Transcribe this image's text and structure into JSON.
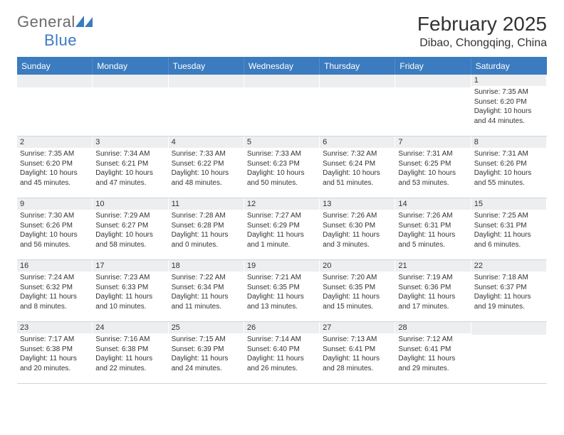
{
  "logo": {
    "text_gray": "General",
    "text_blue": "Blue"
  },
  "title": "February 2025",
  "location": "Dibao, Chongqing, China",
  "colors": {
    "header_bg": "#3b7bbf",
    "header_text": "#ffffff",
    "daynum_bg": "#eceef0",
    "border": "#cfd6dd",
    "body_text": "#333333"
  },
  "typography": {
    "title_fontsize": 28,
    "location_fontsize": 16,
    "weekday_fontsize": 12,
    "body_fontsize": 10
  },
  "weekdays": [
    "Sunday",
    "Monday",
    "Tuesday",
    "Wednesday",
    "Thursday",
    "Friday",
    "Saturday"
  ],
  "weeks": [
    [
      {
        "day": "",
        "lines": [
          "",
          "",
          "",
          ""
        ]
      },
      {
        "day": "",
        "lines": [
          "",
          "",
          "",
          ""
        ]
      },
      {
        "day": "",
        "lines": [
          "",
          "",
          "",
          ""
        ]
      },
      {
        "day": "",
        "lines": [
          "",
          "",
          "",
          ""
        ]
      },
      {
        "day": "",
        "lines": [
          "",
          "",
          "",
          ""
        ]
      },
      {
        "day": "",
        "lines": [
          "",
          "",
          "",
          ""
        ]
      },
      {
        "day": "1",
        "lines": [
          "Sunrise: 7:35 AM",
          "Sunset: 6:20 PM",
          "Daylight: 10 hours",
          "and 44 minutes."
        ]
      }
    ],
    [
      {
        "day": "2",
        "lines": [
          "Sunrise: 7:35 AM",
          "Sunset: 6:20 PM",
          "Daylight: 10 hours",
          "and 45 minutes."
        ]
      },
      {
        "day": "3",
        "lines": [
          "Sunrise: 7:34 AM",
          "Sunset: 6:21 PM",
          "Daylight: 10 hours",
          "and 47 minutes."
        ]
      },
      {
        "day": "4",
        "lines": [
          "Sunrise: 7:33 AM",
          "Sunset: 6:22 PM",
          "Daylight: 10 hours",
          "and 48 minutes."
        ]
      },
      {
        "day": "5",
        "lines": [
          "Sunrise: 7:33 AM",
          "Sunset: 6:23 PM",
          "Daylight: 10 hours",
          "and 50 minutes."
        ]
      },
      {
        "day": "6",
        "lines": [
          "Sunrise: 7:32 AM",
          "Sunset: 6:24 PM",
          "Daylight: 10 hours",
          "and 51 minutes."
        ]
      },
      {
        "day": "7",
        "lines": [
          "Sunrise: 7:31 AM",
          "Sunset: 6:25 PM",
          "Daylight: 10 hours",
          "and 53 minutes."
        ]
      },
      {
        "day": "8",
        "lines": [
          "Sunrise: 7:31 AM",
          "Sunset: 6:26 PM",
          "Daylight: 10 hours",
          "and 55 minutes."
        ]
      }
    ],
    [
      {
        "day": "9",
        "lines": [
          "Sunrise: 7:30 AM",
          "Sunset: 6:26 PM",
          "Daylight: 10 hours",
          "and 56 minutes."
        ]
      },
      {
        "day": "10",
        "lines": [
          "Sunrise: 7:29 AM",
          "Sunset: 6:27 PM",
          "Daylight: 10 hours",
          "and 58 minutes."
        ]
      },
      {
        "day": "11",
        "lines": [
          "Sunrise: 7:28 AM",
          "Sunset: 6:28 PM",
          "Daylight: 11 hours",
          "and 0 minutes."
        ]
      },
      {
        "day": "12",
        "lines": [
          "Sunrise: 7:27 AM",
          "Sunset: 6:29 PM",
          "Daylight: 11 hours",
          "and 1 minute."
        ]
      },
      {
        "day": "13",
        "lines": [
          "Sunrise: 7:26 AM",
          "Sunset: 6:30 PM",
          "Daylight: 11 hours",
          "and 3 minutes."
        ]
      },
      {
        "day": "14",
        "lines": [
          "Sunrise: 7:26 AM",
          "Sunset: 6:31 PM",
          "Daylight: 11 hours",
          "and 5 minutes."
        ]
      },
      {
        "day": "15",
        "lines": [
          "Sunrise: 7:25 AM",
          "Sunset: 6:31 PM",
          "Daylight: 11 hours",
          "and 6 minutes."
        ]
      }
    ],
    [
      {
        "day": "16",
        "lines": [
          "Sunrise: 7:24 AM",
          "Sunset: 6:32 PM",
          "Daylight: 11 hours",
          "and 8 minutes."
        ]
      },
      {
        "day": "17",
        "lines": [
          "Sunrise: 7:23 AM",
          "Sunset: 6:33 PM",
          "Daylight: 11 hours",
          "and 10 minutes."
        ]
      },
      {
        "day": "18",
        "lines": [
          "Sunrise: 7:22 AM",
          "Sunset: 6:34 PM",
          "Daylight: 11 hours",
          "and 11 minutes."
        ]
      },
      {
        "day": "19",
        "lines": [
          "Sunrise: 7:21 AM",
          "Sunset: 6:35 PM",
          "Daylight: 11 hours",
          "and 13 minutes."
        ]
      },
      {
        "day": "20",
        "lines": [
          "Sunrise: 7:20 AM",
          "Sunset: 6:35 PM",
          "Daylight: 11 hours",
          "and 15 minutes."
        ]
      },
      {
        "day": "21",
        "lines": [
          "Sunrise: 7:19 AM",
          "Sunset: 6:36 PM",
          "Daylight: 11 hours",
          "and 17 minutes."
        ]
      },
      {
        "day": "22",
        "lines": [
          "Sunrise: 7:18 AM",
          "Sunset: 6:37 PM",
          "Daylight: 11 hours",
          "and 19 minutes."
        ]
      }
    ],
    [
      {
        "day": "23",
        "lines": [
          "Sunrise: 7:17 AM",
          "Sunset: 6:38 PM",
          "Daylight: 11 hours",
          "and 20 minutes."
        ]
      },
      {
        "day": "24",
        "lines": [
          "Sunrise: 7:16 AM",
          "Sunset: 6:38 PM",
          "Daylight: 11 hours",
          "and 22 minutes."
        ]
      },
      {
        "day": "25",
        "lines": [
          "Sunrise: 7:15 AM",
          "Sunset: 6:39 PM",
          "Daylight: 11 hours",
          "and 24 minutes."
        ]
      },
      {
        "day": "26",
        "lines": [
          "Sunrise: 7:14 AM",
          "Sunset: 6:40 PM",
          "Daylight: 11 hours",
          "and 26 minutes."
        ]
      },
      {
        "day": "27",
        "lines": [
          "Sunrise: 7:13 AM",
          "Sunset: 6:41 PM",
          "Daylight: 11 hours",
          "and 28 minutes."
        ]
      },
      {
        "day": "28",
        "lines": [
          "Sunrise: 7:12 AM",
          "Sunset: 6:41 PM",
          "Daylight: 11 hours",
          "and 29 minutes."
        ]
      },
      {
        "day": "",
        "lines": [
          "",
          "",
          "",
          ""
        ]
      }
    ]
  ]
}
